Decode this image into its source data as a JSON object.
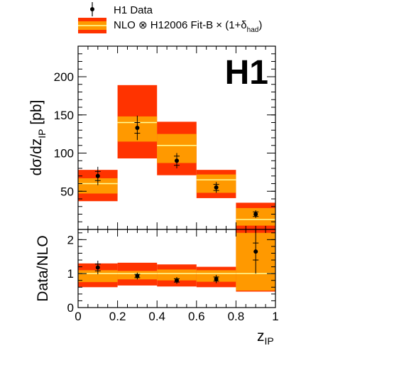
{
  "legend": {
    "data_label": "H1 Data",
    "nlo_label_main": "NLO ⊗ H12006 Fit-B × (1+δ",
    "nlo_label_sub": "had",
    "nlo_label_close": ")"
  },
  "logo": "H1",
  "colors": {
    "outer_band": "#ff3300",
    "inner_band": "#ff9900",
    "central_line": "#ffff99",
    "data_marker": "#000000"
  },
  "chart_data": [
    {
      "type": "bar",
      "title": "",
      "xlabel": "z",
      "xlabel_sub": "IP",
      "ylabel": "dσ/dz",
      "ylabel_sub": "IP",
      "ylabel_unit": " [pb]",
      "xlim": [
        0,
        1
      ],
      "ylim": [
        0,
        240
      ],
      "yticks": [
        50,
        100,
        150,
        200
      ],
      "ytick_labels": [
        "50",
        "100",
        "150",
        "200"
      ],
      "bins": [
        [
          0.0,
          0.2
        ],
        [
          0.2,
          0.4
        ],
        [
          0.4,
          0.6
        ],
        [
          0.6,
          0.8
        ],
        [
          0.8,
          1.0
        ]
      ],
      "nlo_central": [
        60,
        140,
        110,
        65,
        13
      ],
      "nlo_inner_band": [
        [
          47,
          67
        ],
        [
          115,
          148
        ],
        [
          87,
          125
        ],
        [
          48,
          72
        ],
        [
          5,
          28
        ]
      ],
      "nlo_outer_band": [
        [
          37,
          78
        ],
        [
          93,
          189
        ],
        [
          71,
          141
        ],
        [
          41,
          78
        ],
        [
          0,
          35
        ]
      ],
      "data_x": [
        0.1,
        0.3,
        0.5,
        0.7,
        0.9
      ],
      "data_y": [
        70,
        133,
        90,
        55,
        20
      ],
      "data_err_stat": [
        6,
        7,
        6,
        4,
        3
      ],
      "data_err_tot": [
        12,
        16,
        10,
        7,
        5
      ]
    },
    {
      "type": "bar",
      "xlabel": "z",
      "xlabel_sub": "IP",
      "ylabel": "Data/NLO",
      "xlim": [
        0,
        1
      ],
      "ylim": [
        0,
        2.3
      ],
      "xticks": [
        0,
        0.2,
        0.4,
        0.6,
        0.8,
        1
      ],
      "xtick_labels": [
        "0",
        "0.2",
        "0.4",
        "0.6",
        "0.8",
        "1"
      ],
      "yticks": [
        0,
        1,
        2
      ],
      "ytick_labels": [
        "0",
        "1",
        "2"
      ],
      "bins": [
        [
          0.0,
          0.2
        ],
        [
          0.2,
          0.4
        ],
        [
          0.4,
          0.6
        ],
        [
          0.6,
          0.8
        ],
        [
          0.8,
          1.0
        ]
      ],
      "nlo_central": [
        1,
        1,
        1,
        1,
        1
      ],
      "nlo_inner_band": [
        [
          0.75,
          1.1
        ],
        [
          0.83,
          1.08
        ],
        [
          0.8,
          1.12
        ],
        [
          0.76,
          1.1
        ],
        [
          0.5,
          2.2
        ]
      ],
      "nlo_outer_band": [
        [
          0.6,
          1.3
        ],
        [
          0.65,
          1.32
        ],
        [
          0.62,
          1.27
        ],
        [
          0.6,
          1.2
        ],
        [
          0.47,
          2.3
        ]
      ],
      "data_x": [
        0.1,
        0.3,
        0.5,
        0.7,
        0.9
      ],
      "data_y": [
        1.18,
        0.93,
        0.8,
        0.84,
        1.65
      ],
      "data_err_stat": [
        0.1,
        0.05,
        0.05,
        0.06,
        0.25
      ],
      "data_err_tot": [
        0.2,
        0.1,
        0.1,
        0.12,
        0.65
      ]
    }
  ]
}
